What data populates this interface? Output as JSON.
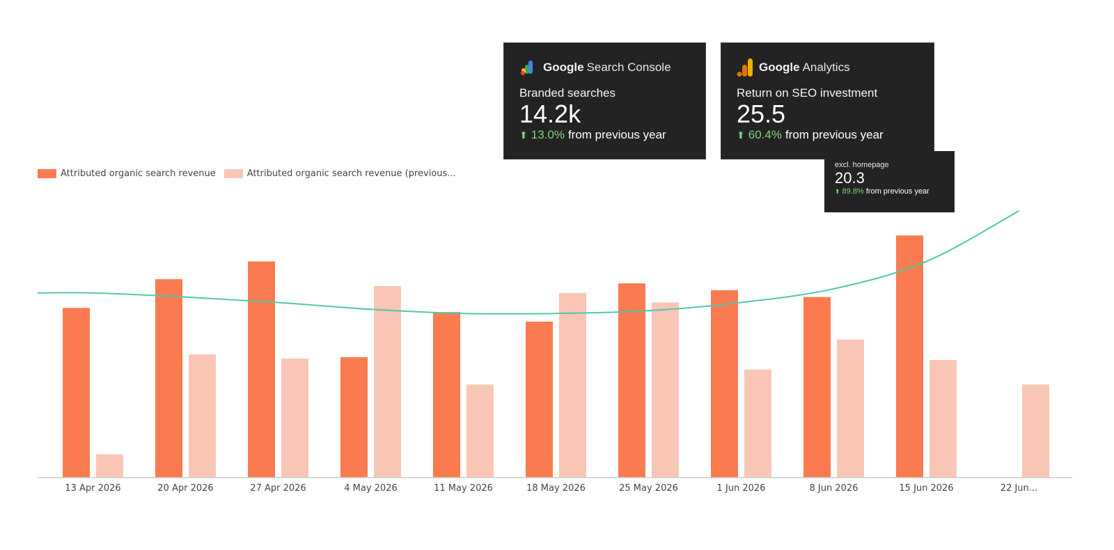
{
  "colors": {
    "current": "#f97b4f",
    "previous": "#f9c6b5",
    "trend": "#4fc8aa",
    "axis": "#cccccc",
    "card_bg": "#232323",
    "positive": "#7ed37f"
  },
  "legend": {
    "current_label": "Attributed organic search revenue",
    "previous_label": "Attributed organic search revenue (previous..."
  },
  "cards": {
    "gsc": {
      "brand_prefix": "Google",
      "brand_product": "Search Console",
      "icon": "search-console-logo-icon",
      "label": "Branded searches",
      "value": "14.2k",
      "delta_pct": "13.0%",
      "delta_text": "from previous year"
    },
    "ga": {
      "brand_prefix": "Google",
      "brand_product": "Analytics",
      "icon": "analytics-logo-icon",
      "label": "Return on SEO investment",
      "value": "25.5",
      "delta_pct": "60.4%",
      "delta_text": "from previous year"
    },
    "ga_sub": {
      "label": "excl. homepage",
      "value": "20.3",
      "delta_pct": "89.8%",
      "delta_text": "from previous year"
    }
  },
  "chart_data": {
    "type": "bar",
    "categories": [
      "13 Apr 2026",
      "20 Apr 2026",
      "27 Apr 2026",
      "4 May 2026",
      "11 May 2026",
      "18 May 2026",
      "25 May 2026",
      "1 Jun 2026",
      "8 Jun 2026",
      "15 Jun 2026",
      "22 Jun..."
    ],
    "series": [
      {
        "name": "Attributed organic search revenue",
        "values": [
          62,
          72.5,
          79,
          44,
          60.5,
          57,
          71,
          68.5,
          66,
          88.5,
          null
        ]
      },
      {
        "name": "Attributed organic search revenue (previous...",
        "values": [
          8.5,
          45,
          43.5,
          70,
          34,
          67.5,
          64,
          39.5,
          50.5,
          43,
          34
        ]
      }
    ],
    "trend_line": [
      [
        0,
        67.5
      ],
      [
        1,
        66
      ],
      [
        2,
        64
      ],
      [
        3,
        61.5
      ],
      [
        4,
        60
      ],
      [
        5,
        60
      ],
      [
        6,
        61
      ],
      [
        7,
        64
      ],
      [
        8,
        69
      ],
      [
        9,
        79
      ],
      [
        10,
        97.5
      ]
    ],
    "ylim": [
      0,
      100
    ],
    "grid": false,
    "legend_position": "top-left"
  }
}
